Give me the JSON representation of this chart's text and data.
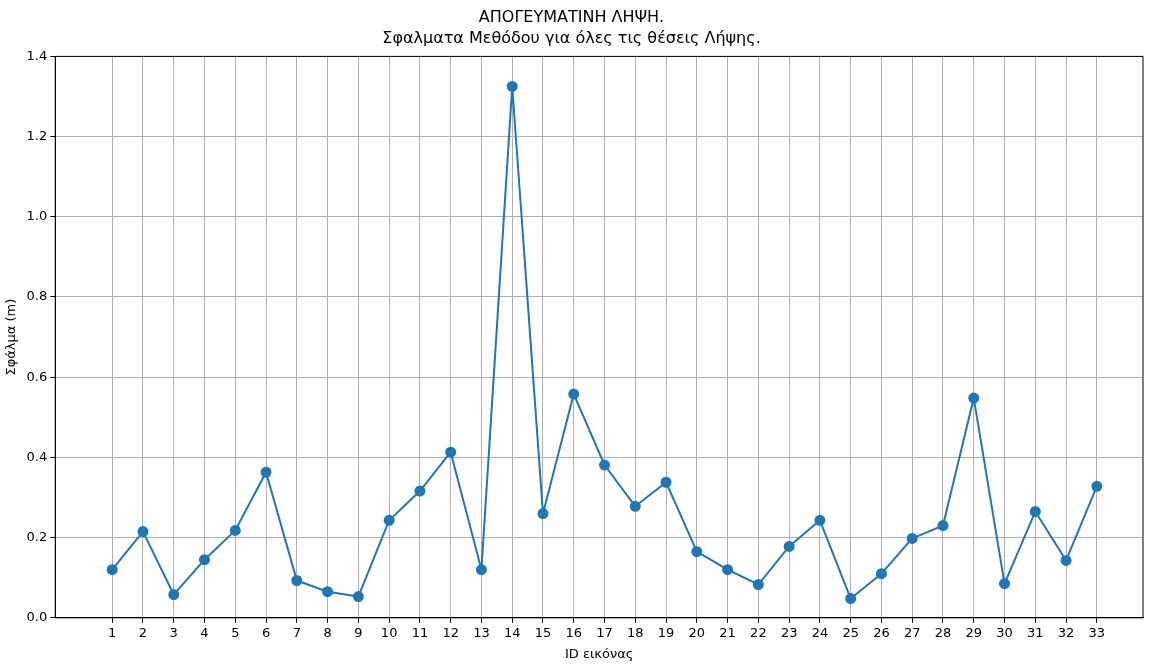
{
  "chart_data": {
    "type": "line",
    "title": "ΑΠΟΓΕΥΜΑΤΙΝΗ ΛΗΨΗ.",
    "subtitle": "Σφαλματα Μεθόδου για όλες τις θέσεις Λήψης.",
    "xlabel": "ID εικόνας",
    "ylabel": "Σφάλμα (m)",
    "x": [
      1,
      2,
      3,
      4,
      5,
      6,
      7,
      8,
      9,
      10,
      11,
      12,
      13,
      14,
      15,
      16,
      17,
      18,
      19,
      20,
      21,
      22,
      23,
      24,
      25,
      26,
      27,
      28,
      29,
      30,
      31,
      32,
      33
    ],
    "series": [
      {
        "color": "#1f77b4",
        "values": [
          0.12,
          0.215,
          0.058,
          0.145,
          0.218,
          0.363,
          0.093,
          0.065,
          0.053,
          0.243,
          0.316,
          0.413,
          0.12,
          1.325,
          0.26,
          0.558,
          0.381,
          0.278,
          0.338,
          0.165,
          0.12,
          0.083,
          0.178,
          0.243,
          0.048,
          0.11,
          0.198,
          0.23,
          0.548,
          0.085,
          0.265,
          0.143,
          0.328
        ]
      }
    ],
    "xlim": [
      -0.85,
      34.5
    ],
    "xticks": [
      1,
      2,
      3,
      4,
      5,
      6,
      7,
      8,
      9,
      10,
      11,
      12,
      13,
      14,
      15,
      16,
      17,
      18,
      19,
      20,
      21,
      22,
      23,
      24,
      25,
      26,
      27,
      28,
      29,
      30,
      31,
      32,
      33
    ],
    "ylim": [
      0,
      1.4
    ],
    "yticks": [
      {
        "value": 0,
        "label": "0.0"
      },
      {
        "value": 0.2,
        "label": "0.2"
      },
      {
        "value": 0.4,
        "label": "0.4"
      },
      {
        "value": 0.6,
        "label": "0.6"
      },
      {
        "value": 0.8,
        "label": "0.8"
      },
      {
        "value": 1.0,
        "label": "1.0"
      },
      {
        "value": 1.2,
        "label": "1.2"
      },
      {
        "value": 1.4,
        "label": "1.4"
      }
    ],
    "grid": true,
    "marker": "circle",
    "line_style": "solid",
    "legend": false
  }
}
